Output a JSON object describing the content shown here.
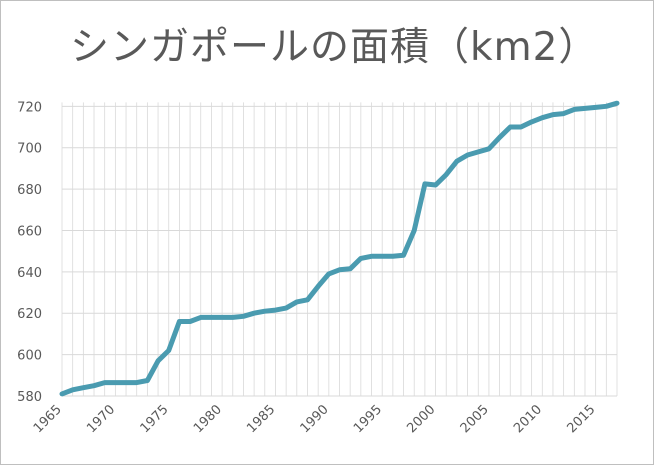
{
  "chart_data": {
    "type": "line",
    "title": "シンガポールの面積（km2）",
    "xlabel": "",
    "ylabel": "",
    "xlim": [
      1965,
      2017
    ],
    "ylim": [
      580,
      725
    ],
    "yticks": [
      580,
      600,
      620,
      640,
      660,
      680,
      700,
      720
    ],
    "xticks": [
      1965,
      1970,
      1975,
      1980,
      1985,
      1990,
      1995,
      2000,
      2005,
      2010,
      2015
    ],
    "grid": true,
    "legend": "none",
    "line_color": "#4a9bb0",
    "grid_color": "#d9d9d9",
    "series": [
      {
        "x": [
          1965,
          1966,
          1967,
          1968,
          1969,
          1970,
          1971,
          1972,
          1973,
          1974,
          1975,
          1976,
          1977,
          1978,
          1979,
          1980,
          1981,
          1982,
          1983,
          1984,
          1985,
          1986,
          1987,
          1988,
          1989,
          1990,
          1991,
          1992,
          1993,
          1994,
          1995,
          1996,
          1997,
          1998,
          1999,
          2000,
          2001,
          2002,
          2003,
          2004,
          2005,
          2006,
          2007,
          2008,
          2009,
          2010,
          2011,
          2012,
          2013,
          2014,
          2015,
          2016,
          2017
        ],
        "values": [
          581,
          583,
          584,
          585,
          586.5,
          586.5,
          586.5,
          586.5,
          587.5,
          597,
          602,
          616,
          616,
          618,
          618,
          618,
          618,
          618.5,
          620,
          621,
          621.5,
          622.5,
          625.5,
          626.5,
          633,
          639,
          641,
          641.5,
          646.5,
          647.5,
          647.5,
          647.5,
          648,
          660,
          682.5,
          682,
          687,
          693.5,
          696.5,
          698,
          699.5,
          705,
          710,
          710,
          712.5,
          714.5,
          716,
          716.5,
          718.5,
          719,
          719.5,
          720,
          721.5
        ]
      }
    ]
  }
}
